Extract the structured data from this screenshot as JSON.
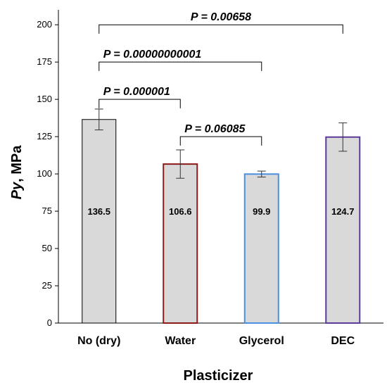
{
  "chart_data": {
    "type": "bar",
    "xlabel": "Plasticizer",
    "ylabel_italic": "Py",
    "ylabel_rest": ", MPa",
    "ylim": [
      0,
      210
    ],
    "yticks": [
      "0",
      "25",
      "50",
      "75",
      "100",
      "125",
      "150",
      "175",
      "200"
    ],
    "categories": [
      "No (dry)",
      "Water",
      "Glycerol",
      "DEC"
    ],
    "values": [
      136.5,
      106.6,
      99.9,
      124.7
    ],
    "value_labels": [
      "136.5",
      "106.6",
      "99.9",
      "124.7"
    ],
    "errors": [
      7,
      9.5,
      2,
      9.5
    ],
    "bar_fill": "#d9d9d9",
    "bar_borders": [
      "#000000",
      "#8b1a1a",
      "#4a90e2",
      "#5b3a9a"
    ],
    "grid": false,
    "annotations": [
      {
        "from": 0,
        "to": 3,
        "y": 200,
        "text": "P = 0.00658"
      },
      {
        "from": 0,
        "to": 2,
        "y": 175,
        "text": "P = 0.00000000001"
      },
      {
        "from": 0,
        "to": 1,
        "y": 150,
        "text": "P = 0.000001"
      },
      {
        "from": 1,
        "to": 2,
        "y": 125,
        "text": "P = 0.06085"
      }
    ]
  }
}
